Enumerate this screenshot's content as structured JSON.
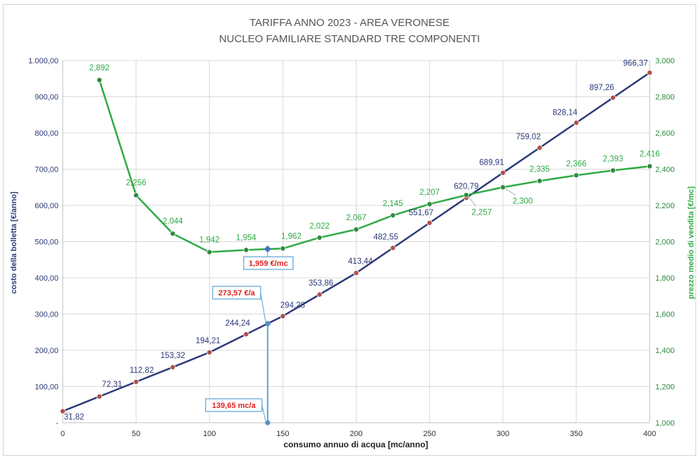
{
  "chart_data": {
    "type": "line",
    "title_line1": "TARIFFA ANNO 2023 - AREA VERONESE",
    "title_line2": "NUCLEO FAMILIARE STANDARD TRE COMPONENTI",
    "xlabel": "consumo annuo di acqua [mc/anno]",
    "ylabel_left": "costo della bolletta [€/anno]",
    "ylabel_right": "prezzo medio di vendita [€/mc]",
    "xlim": [
      0,
      400
    ],
    "ylim_left": [
      0,
      1000
    ],
    "ylim_right": [
      1.0,
      3.0
    ],
    "x_ticks": [
      0,
      50,
      100,
      150,
      200,
      250,
      300,
      350,
      400
    ],
    "x_tick_labels": [
      "0",
      "50",
      "100",
      "150",
      "200",
      "250",
      "300",
      "350",
      "400"
    ],
    "y_left_ticks": [
      0,
      100,
      200,
      300,
      400,
      500,
      600,
      700,
      800,
      900,
      1000
    ],
    "y_left_tick_labels": [
      "-",
      "100,00",
      "200,00",
      "300,00",
      "400,00",
      "500,00",
      "600,00",
      "700,00",
      "800,00",
      "900,00",
      "1.000,00"
    ],
    "y_right_ticks": [
      1.0,
      1.2,
      1.4,
      1.6,
      1.8,
      2.0,
      2.2,
      2.4,
      2.6,
      2.8,
      3.0
    ],
    "y_right_tick_labels": [
      "1,000",
      "1,200",
      "1,400",
      "1,600",
      "1,800",
      "2,000",
      "2,200",
      "2,400",
      "2,600",
      "2,800",
      "3,000"
    ],
    "grid": true,
    "series": [
      {
        "axis": "left",
        "color": "#2d3a78",
        "marker_color": "#b0504a",
        "x": [
          0,
          25,
          50,
          75,
          100,
          125,
          150,
          175,
          200,
          225,
          250,
          275,
          300,
          325,
          350,
          375,
          400
        ],
        "values": [
          31.82,
          72.31,
          112.82,
          153.32,
          194.21,
          244.24,
          294.28,
          353.86,
          413.44,
          482.55,
          551.67,
          620.79,
          689.91,
          759.02,
          828.14,
          897.26,
          966.37
        ],
        "labels": [
          "31,82",
          "72,31",
          "112,82",
          "153,32",
          "194,21",
          "244,24",
          "294,28",
          "353,86",
          "413,44",
          "482,55",
          "551,67",
          "620,79",
          "689,91",
          "759,02",
          "828,14",
          "897,26",
          "966,37"
        ]
      },
      {
        "axis": "right",
        "color": "#2eaa44",
        "marker_color": "#2e8b3d",
        "x": [
          25,
          50,
          75,
          100,
          125,
          150,
          175,
          200,
          225,
          250,
          275,
          300,
          325,
          350,
          375,
          400
        ],
        "values": [
          2.892,
          2.256,
          2.044,
          1.942,
          1.954,
          1.962,
          2.022,
          2.067,
          2.145,
          2.207,
          2.257,
          2.3,
          2.335,
          2.366,
          2.393,
          2.416
        ],
        "labels": [
          "2,892",
          "2,256",
          "2,044",
          "1,942",
          "1,954",
          "1,962",
          "2,022",
          "2,067",
          "2,145",
          "2,207",
          "2,257",
          "2,300",
          "2,335",
          "2,366",
          "2,393",
          "2,416"
        ]
      }
    ],
    "highlight": {
      "x": 139.65,
      "cost": 273.57,
      "price": 1.959,
      "x_label": "139,65 mc/a",
      "cost_label": "273,57 €/a",
      "price_label": "1,959 €/mc",
      "line_color": "#5ba3d6",
      "cost_marker_color": "#5b8ec6",
      "price_marker_color": "#4472c4"
    }
  }
}
